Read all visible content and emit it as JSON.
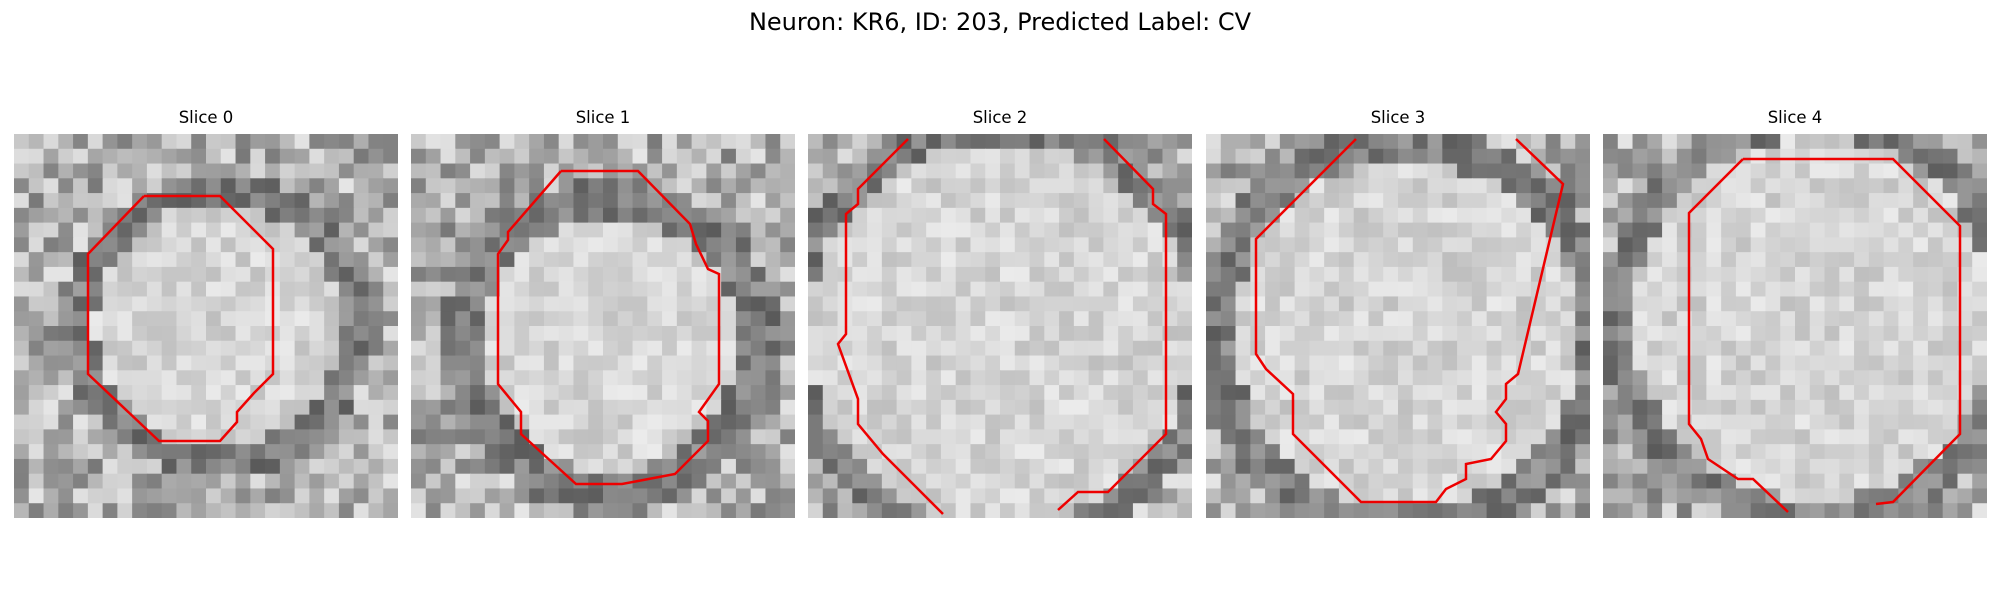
{
  "figure": {
    "title": "Neuron: KR6, ID: 203, Predicted Label: CV"
  },
  "panels": [
    {
      "title": "Slice 0"
    },
    {
      "title": "Slice 1"
    },
    {
      "title": "Slice 2"
    },
    {
      "title": "Slice 3"
    },
    {
      "title": "Slice 4"
    }
  ],
  "colors": {
    "contour": "#ee0000",
    "background": "#ffffff"
  }
}
